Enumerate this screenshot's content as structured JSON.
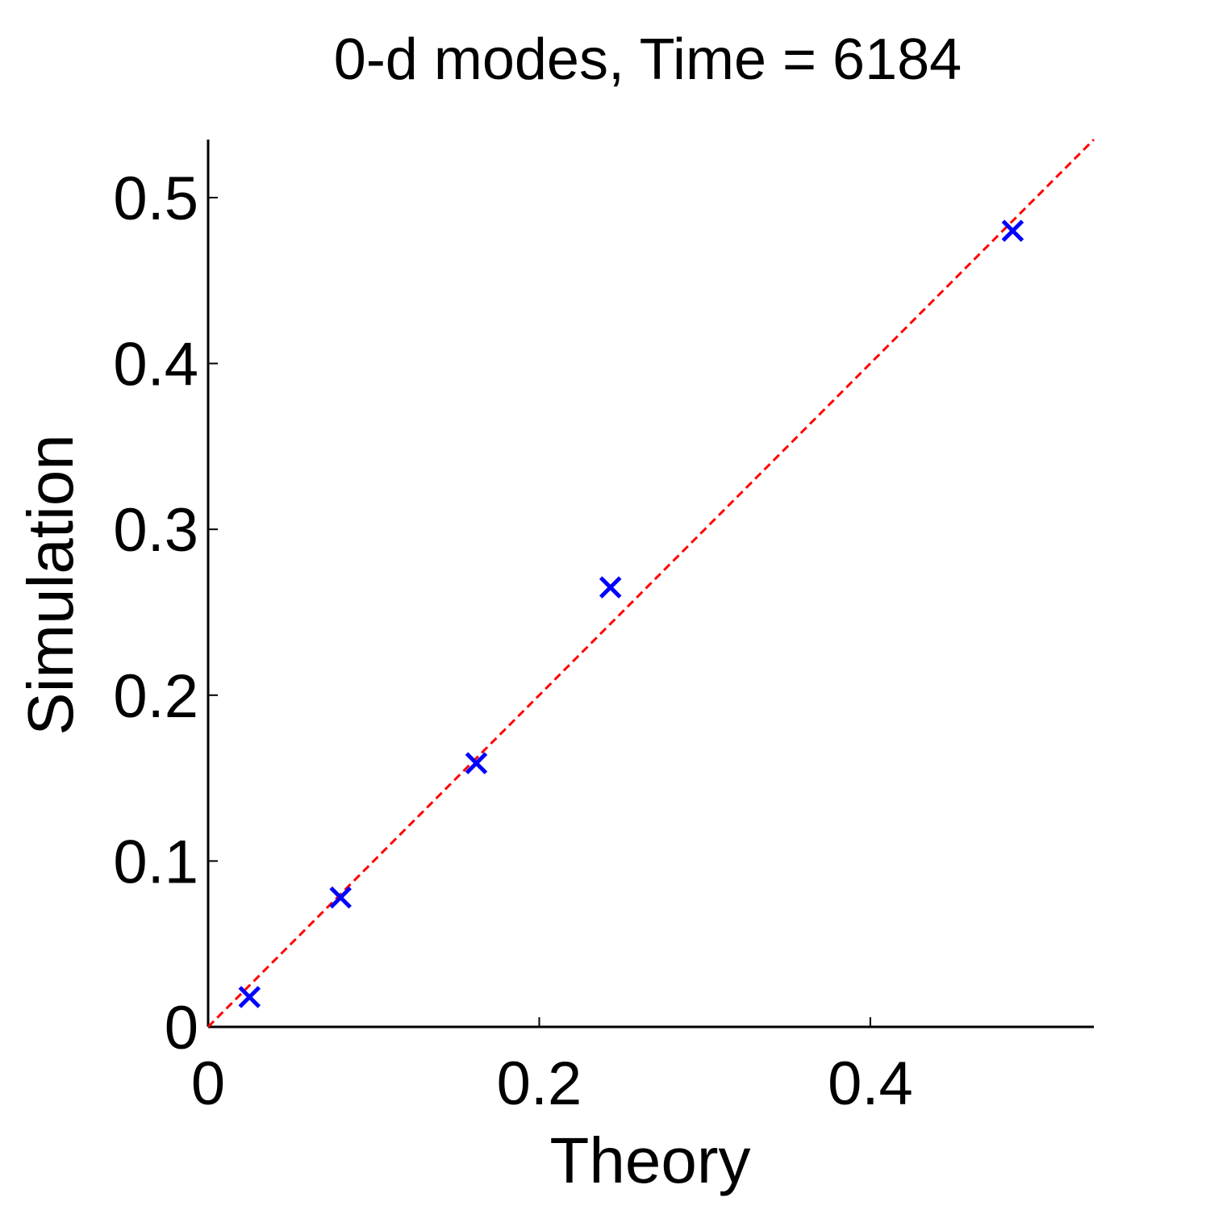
{
  "chart_data": {
    "type": "scatter",
    "title": "0-d modes, Time = 6184",
    "xlabel": "Theory",
    "ylabel": "Simulation",
    "xlim": [
      0,
      0.535
    ],
    "ylim": [
      0,
      0.535
    ],
    "xticks": [
      0,
      0.2,
      0.4
    ],
    "xtick_labels": [
      "0",
      "0.2",
      "0.4"
    ],
    "yticks": [
      0,
      0.1,
      0.2,
      0.3,
      0.4,
      0.5
    ],
    "ytick_labels": [
      "0",
      "0.1",
      "0.2",
      "0.3",
      "0.4",
      "0.5"
    ],
    "grid": false,
    "series": [
      {
        "marker": "x",
        "color": "#0000ff",
        "x": [
          0.025,
          0.08,
          0.162,
          0.243,
          0.486
        ],
        "y": [
          0.018,
          0.078,
          0.159,
          0.265,
          0.48
        ]
      },
      {
        "style": "dashed-line",
        "color": "#ff0000",
        "x": [
          0,
          0.535
        ],
        "y": [
          0,
          0.535
        ]
      }
    ]
  }
}
